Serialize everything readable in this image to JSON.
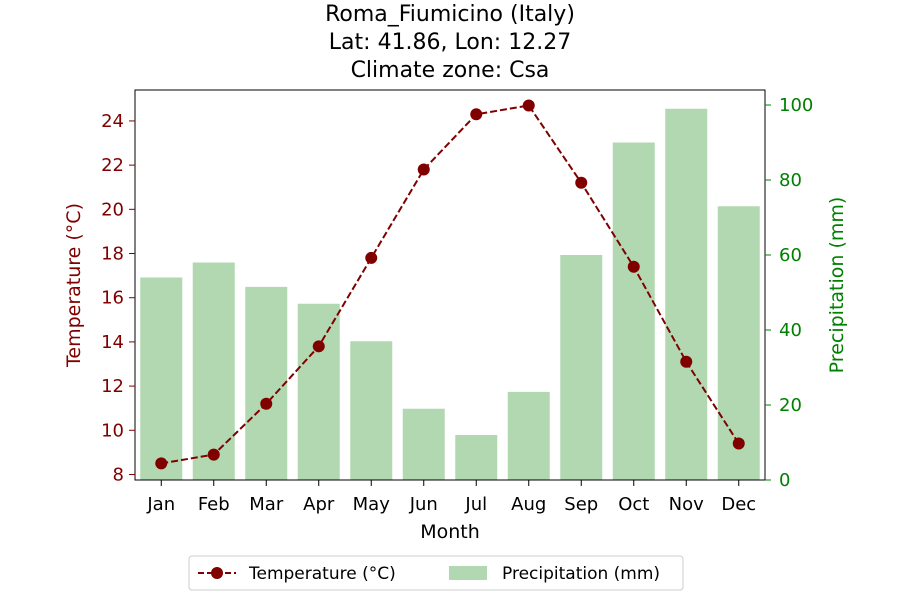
{
  "chart_data": {
    "type": "bar+line",
    "title_lines": [
      "Roma_Fiumicino (Italy)",
      "Lat: 41.86, Lon: 12.27",
      "Climate zone: Csa"
    ],
    "xlabel": "Month",
    "ylabel_left": "Temperature (°C)",
    "ylabel_right": "Precipitation (mm)",
    "categories": [
      "Jan",
      "Feb",
      "Mar",
      "Apr",
      "May",
      "Jun",
      "Jul",
      "Aug",
      "Sep",
      "Oct",
      "Nov",
      "Dec"
    ],
    "temperature": {
      "name": "Temperature (°C)",
      "values": [
        8.5,
        8.9,
        11.2,
        13.8,
        17.8,
        21.8,
        24.3,
        24.7,
        21.2,
        17.4,
        13.1,
        9.4
      ],
      "ylim": [
        7.75,
        25.4
      ],
      "ticks": [
        8,
        10,
        12,
        14,
        16,
        18,
        20,
        22,
        24
      ],
      "color": "#800000"
    },
    "precipitation": {
      "name": "Precipitation (mm)",
      "values": [
        54,
        58,
        51.5,
        47,
        37,
        19,
        12,
        23.5,
        60,
        90,
        99,
        73
      ],
      "ylim": [
        0,
        104
      ],
      "ticks": [
        0,
        20,
        40,
        60,
        80,
        100
      ],
      "color": "#b2d8b2",
      "axis_color": "#008000"
    },
    "legend_position": "bottom-center",
    "grid": false
  }
}
